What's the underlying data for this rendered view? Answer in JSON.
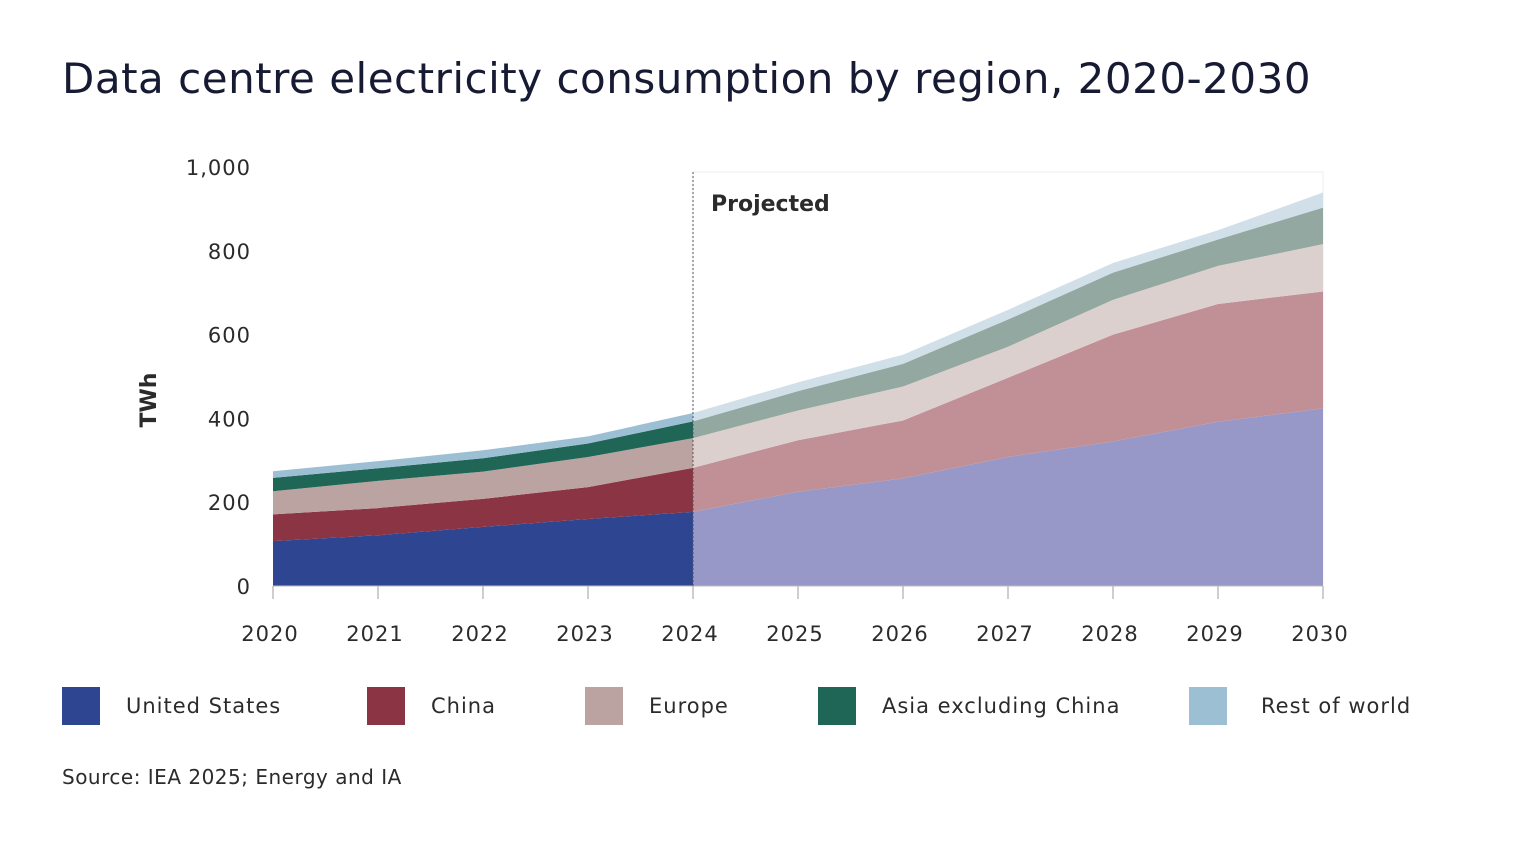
{
  "title": "Data centre electricity consumption by region, 2020-2030",
  "source": "Source: IEA 2025; Energy and IA",
  "projected_label": "Projected",
  "chart_data": {
    "type": "area",
    "stacked": true,
    "title": "Data centre electricity consumption by region, 2020-2030",
    "xlabel": "",
    "ylabel": "TWh",
    "x": [
      2020,
      2021,
      2022,
      2023,
      2024,
      2025,
      2026,
      2027,
      2028,
      2029,
      2030
    ],
    "x_tick_labels": [
      "2020",
      "2021",
      "2022",
      "2023",
      "2024",
      "2025",
      "2026",
      "2027",
      "2028",
      "2029",
      "2030"
    ],
    "ylim": [
      0,
      1000
    ],
    "y_ticks": [
      0,
      200,
      400,
      600,
      800,
      1000
    ],
    "y_tick_labels": [
      "0",
      "200",
      "400",
      "600",
      "800",
      "1,000"
    ],
    "grid": false,
    "projection_start": 2024,
    "projected_annotation": "Projected",
    "legend_position": "bottom",
    "series": [
      {
        "name": "United States",
        "color": "#2e4591",
        "projected_color": "#9898c8",
        "values": [
          107,
          121,
          141,
          160,
          177,
          225,
          257,
          308,
          345,
          392,
          424
        ]
      },
      {
        "name": "China",
        "color": "#8b3444",
        "projected_color": "#c19096",
        "values": [
          64,
          65,
          67,
          76,
          105,
          123,
          138,
          189,
          255,
          281,
          279
        ]
      },
      {
        "name": "Europe",
        "color": "#bba3a1",
        "projected_color": "#dcd0cf",
        "values": [
          55,
          65,
          65,
          72,
          71,
          71,
          81,
          74,
          83,
          91,
          113
        ]
      },
      {
        "name": "Asia excluding China",
        "color": "#1f6657",
        "projected_color": "#93a8a0",
        "values": [
          32,
          30,
          32,
          32,
          40,
          46,
          54,
          65,
          65,
          63,
          87
        ]
      },
      {
        "name": "Rest of world",
        "color": "#9dbfd3",
        "projected_color": "#d0dfe8",
        "values": [
          16,
          17,
          19,
          17,
          20,
          21,
          22,
          23,
          23,
          22,
          36
        ]
      }
    ]
  }
}
